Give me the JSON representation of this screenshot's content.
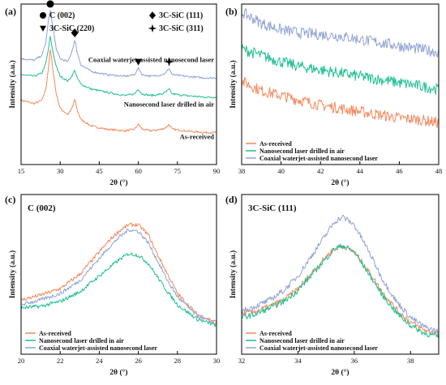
{
  "figure": {
    "series_names": [
      "As-received",
      "Nanosecond laser drilled in air",
      "Coaxial waterjet-assisted nanosecond laser"
    ],
    "series_colors": [
      "#f4895d",
      "#1fbf93",
      "#8ea2d4"
    ]
  },
  "chart_data": [
    {
      "panel": "(a)",
      "type": "line",
      "xlabel": "2θ (°)",
      "ylabel": "Intensity (a.u.)",
      "xlim": [
        15,
        90
      ],
      "xticks": [
        "15",
        "30",
        "45",
        "60",
        "75",
        "90"
      ],
      "ylim": [
        0,
        1
      ],
      "curve_labels": [
        "Coaxial waterjet-assisted nanosecond laser",
        "Nanosecond laser drilled in air",
        "As-received"
      ],
      "legend": [
        {
          "marker": "circle",
          "label": "C (002)",
          "peak_x": 26.2
        },
        {
          "marker": "diamond",
          "label": "3C-SiC (111)",
          "peak_x": 35.6
        },
        {
          "marker": "triangle-down",
          "label": "3C-SiC (220)",
          "peak_x": 60.0
        },
        {
          "marker": "star4",
          "label": "3C-SiC (311)",
          "peak_x": 71.8
        }
      ],
      "series": [
        {
          "name": "As-received",
          "color": "#f4895d",
          "x": [
            15,
            20,
            23,
            24.5,
            25.5,
            26.2,
            27,
            28.5,
            30,
            33,
            34.8,
            35.6,
            36.5,
            38,
            42,
            48,
            55,
            58.5,
            60,
            61.5,
            65,
            69,
            70.5,
            71.8,
            73,
            78,
            85,
            90
          ],
          "values": [
            0.4,
            0.38,
            0.4,
            0.47,
            0.6,
            0.72,
            0.62,
            0.44,
            0.35,
            0.31,
            0.36,
            0.41,
            0.34,
            0.28,
            0.24,
            0.22,
            0.21,
            0.22,
            0.25,
            0.22,
            0.21,
            0.22,
            0.23,
            0.25,
            0.22,
            0.21,
            0.2,
            0.2
          ]
        },
        {
          "name": "Nanosecond laser drilled in air",
          "color": "#1fbf93",
          "x": [
            15,
            20,
            23,
            24.5,
            25.5,
            26.2,
            27,
            28.5,
            30,
            33,
            34.8,
            35.6,
            36.5,
            38,
            42,
            48,
            55,
            58.5,
            60,
            61.5,
            65,
            69,
            70.5,
            71.8,
            73,
            78,
            85,
            90
          ],
          "values": [
            0.56,
            0.55,
            0.57,
            0.63,
            0.72,
            0.8,
            0.72,
            0.61,
            0.55,
            0.52,
            0.56,
            0.59,
            0.54,
            0.5,
            0.47,
            0.45,
            0.43,
            0.44,
            0.47,
            0.44,
            0.43,
            0.44,
            0.45,
            0.47,
            0.44,
            0.43,
            0.42,
            0.42
          ]
        },
        {
          "name": "Coaxial waterjet-assisted nanosecond laser",
          "color": "#8ea2d4",
          "x": [
            15,
            20,
            23,
            24.5,
            25.5,
            26.2,
            27,
            28.5,
            30,
            33,
            34.8,
            35.6,
            36.5,
            38,
            42,
            48,
            55,
            58.5,
            60,
            61.5,
            65,
            69,
            70.5,
            71.8,
            73,
            78,
            85,
            90
          ],
          "values": [
            0.66,
            0.65,
            0.68,
            0.76,
            0.9,
            0.96,
            0.88,
            0.72,
            0.66,
            0.64,
            0.72,
            0.78,
            0.7,
            0.62,
            0.58,
            0.56,
            0.55,
            0.56,
            0.6,
            0.56,
            0.55,
            0.56,
            0.57,
            0.6,
            0.56,
            0.55,
            0.54,
            0.54
          ]
        }
      ]
    },
    {
      "panel": "(b)",
      "type": "line",
      "xlabel": "2θ (°)",
      "ylabel": "Intensity (a.u.)",
      "xlim": [
        38,
        48
      ],
      "xticks": [
        "38",
        "40",
        "42",
        "44",
        "46",
        "48"
      ],
      "ylim": [
        0,
        1
      ],
      "legend_position": "bottom-left",
      "series": [
        {
          "name": "As-received",
          "color": "#f4895d",
          "x": [
            38,
            39,
            40,
            41,
            42,
            43,
            44,
            45,
            46,
            47,
            48
          ],
          "values": [
            0.52,
            0.46,
            0.43,
            0.4,
            0.37,
            0.35,
            0.33,
            0.31,
            0.29,
            0.28,
            0.26
          ]
        },
        {
          "name": "Nanosecond laser drilled in air",
          "color": "#1fbf93",
          "x": [
            38,
            39,
            40,
            41,
            42,
            43,
            44,
            45,
            46,
            47,
            48
          ],
          "values": [
            0.72,
            0.68,
            0.64,
            0.61,
            0.59,
            0.57,
            0.55,
            0.53,
            0.51,
            0.49,
            0.47
          ]
        },
        {
          "name": "Coaxial waterjet-assisted nanosecond laser",
          "color": "#8ea2d4",
          "x": [
            38,
            39,
            40,
            41,
            42,
            43,
            44,
            45,
            46,
            47,
            48
          ],
          "values": [
            0.95,
            0.88,
            0.84,
            0.82,
            0.81,
            0.8,
            0.78,
            0.76,
            0.74,
            0.72,
            0.7
          ]
        }
      ]
    },
    {
      "panel": "(c)",
      "type": "line",
      "title": "C (002)",
      "xlabel": "2θ (°)",
      "ylabel": "Intensity (a.u.)",
      "xlim": [
        20,
        30
      ],
      "xticks": [
        "20",
        "22",
        "24",
        "26",
        "28",
        "30"
      ],
      "ylim": [
        0,
        1
      ],
      "legend_position": "bottom-left",
      "series": [
        {
          "name": "As-received",
          "color": "#f4895d",
          "x": [
            20,
            21,
            22,
            23,
            23.5,
            24,
            24.5,
            25,
            25.5,
            26,
            26.5,
            27,
            27.5,
            28,
            29,
            30
          ],
          "values": [
            0.34,
            0.37,
            0.41,
            0.5,
            0.57,
            0.64,
            0.71,
            0.77,
            0.81,
            0.81,
            0.75,
            0.62,
            0.5,
            0.38,
            0.25,
            0.2
          ]
        },
        {
          "name": "Nanosecond laser drilled in air",
          "color": "#1fbf93",
          "x": [
            20,
            21,
            22,
            23,
            23.5,
            24,
            24.5,
            25,
            25.5,
            26,
            26.5,
            27,
            27.5,
            28,
            29,
            30
          ],
          "values": [
            0.29,
            0.3,
            0.33,
            0.39,
            0.44,
            0.49,
            0.54,
            0.59,
            0.63,
            0.62,
            0.57,
            0.48,
            0.39,
            0.31,
            0.22,
            0.18
          ]
        },
        {
          "name": "Coaxial waterjet-assisted nanosecond laser",
          "color": "#8ea2d4",
          "x": [
            20,
            21,
            22,
            23,
            23.5,
            24,
            24.5,
            25,
            25.5,
            26,
            26.5,
            27,
            27.5,
            28,
            29,
            30
          ],
          "values": [
            0.31,
            0.34,
            0.38,
            0.46,
            0.53,
            0.6,
            0.67,
            0.73,
            0.78,
            0.77,
            0.7,
            0.58,
            0.46,
            0.36,
            0.24,
            0.19
          ]
        }
      ]
    },
    {
      "panel": "(d)",
      "type": "line",
      "title": "3C-SiC (111)",
      "xlabel": "2θ (°)",
      "ylabel": "Intensity (a.u.)",
      "xlim": [
        32,
        39
      ],
      "xticks": [
        "32",
        "34",
        "36",
        "38"
      ],
      "ylim": [
        0,
        1
      ],
      "legend_position": "bottom-left",
      "series": [
        {
          "name": "As-received",
          "color": "#f4895d",
          "x": [
            32,
            32.5,
            33,
            33.5,
            34,
            34.5,
            35,
            35.3,
            35.6,
            36,
            36.5,
            37,
            37.5,
            38,
            38.5,
            39
          ],
          "values": [
            0.25,
            0.27,
            0.3,
            0.34,
            0.41,
            0.51,
            0.61,
            0.66,
            0.68,
            0.64,
            0.52,
            0.39,
            0.28,
            0.2,
            0.15,
            0.13
          ]
        },
        {
          "name": "Nanosecond laser drilled in air",
          "color": "#1fbf93",
          "x": [
            32,
            32.5,
            33,
            33.5,
            34,
            34.5,
            35,
            35.3,
            35.6,
            36,
            36.5,
            37,
            37.5,
            38,
            38.5,
            39
          ],
          "values": [
            0.23,
            0.25,
            0.29,
            0.33,
            0.4,
            0.5,
            0.6,
            0.66,
            0.68,
            0.64,
            0.51,
            0.37,
            0.26,
            0.18,
            0.13,
            0.11
          ]
        },
        {
          "name": "Coaxial waterjet-assisted nanosecond laser",
          "color": "#8ea2d4",
          "x": [
            32,
            32.5,
            33,
            33.5,
            34,
            34.5,
            35,
            35.3,
            35.6,
            36,
            36.5,
            37,
            37.5,
            38,
            38.5,
            39
          ],
          "values": [
            0.27,
            0.3,
            0.34,
            0.4,
            0.49,
            0.62,
            0.75,
            0.83,
            0.86,
            0.81,
            0.65,
            0.47,
            0.33,
            0.23,
            0.17,
            0.14
          ]
        }
      ]
    }
  ]
}
